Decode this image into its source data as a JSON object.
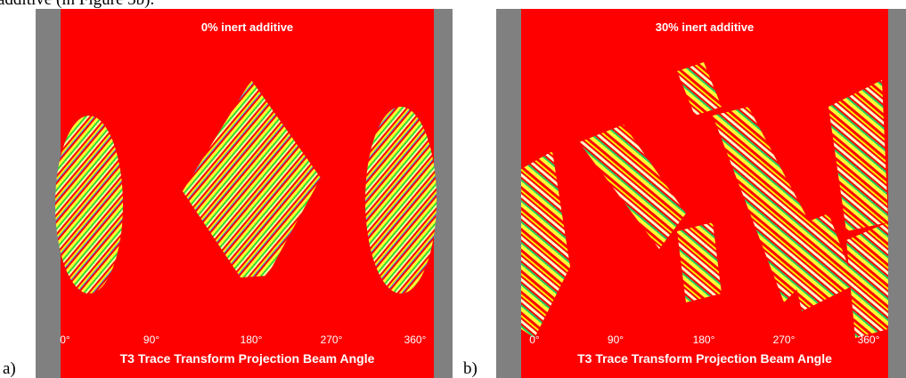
{
  "intro_text": "additive (in Figure 5b).",
  "panels": [
    {
      "label": "a)",
      "title": "0% inert additive",
      "axis_ticks": [
        "0°",
        "90°",
        "180°",
        "270°",
        "360°"
      ],
      "axis_label": "T3 Trace Transform Projection Beam Angle"
    },
    {
      "label": "b)",
      "title": "30% inert additive",
      "axis_ticks": [
        "0°",
        "90°",
        "180°",
        "270°",
        "360°"
      ],
      "axis_label": "T3 Trace Transform Projection Beam Angle"
    }
  ]
}
